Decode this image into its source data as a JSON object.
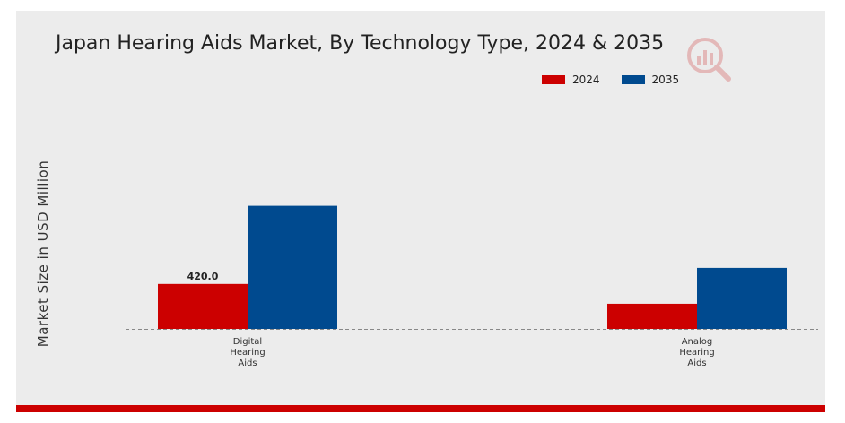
{
  "chart_data": {
    "type": "bar",
    "title": "Japan Hearing Aids Market, By Technology Type, 2024 & 2035",
    "xlabel": "",
    "ylabel": "Market Size in USD Million",
    "categories": [
      "Digital Hearing Aids",
      "Analog Hearing Aids"
    ],
    "series": [
      {
        "name": "2024",
        "color": "#cc0000",
        "values": [
          420.0,
          235.0
        ]
      },
      {
        "name": "2035",
        "color": "#004a8f",
        "values": [
          1150.0,
          570.0
        ]
      }
    ],
    "data_labels": [
      {
        "series": 0,
        "category": 0,
        "text": "420.0"
      }
    ],
    "ylim": [
      0,
      1900
    ],
    "grid": false,
    "legend_position": "top-right"
  },
  "logo": {
    "icon": "market-research-logo-icon",
    "color": "#e0b3b3"
  }
}
